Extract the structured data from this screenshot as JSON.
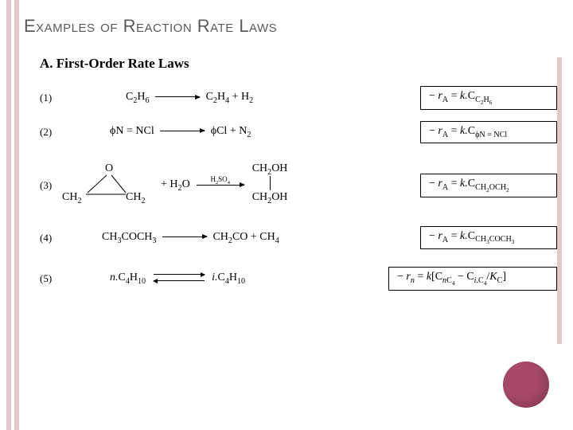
{
  "title": "Examples of Reaction Rate Laws",
  "section": "A. First-Order Rate Laws",
  "rows": [
    {
      "num": "(1)",
      "reactL": "C<sub>2</sub>H<sub>6</sub>",
      "reactR": "C<sub>2</sub>H<sub>4</sub> + H<sub>2</sub>",
      "rate": "− <span class='italic'>r</span><sub>A</sub> = <span class='italic'>k.</span>C<sub>C<sub>2</sub>H<sub>6</sub></sub>"
    },
    {
      "num": "(2)",
      "reactL": "ϕN = NCl",
      "reactR": "ϕCl + N<sub>2</sub>",
      "rate": "− <span class='italic'>r</span><sub>A</sub> = <span class='italic'>k.</span>C<sub>ϕN = NCl</sub>"
    },
    {
      "num": "(3)",
      "catalyst": "H<sub>2</sub>SO<sub>4</sub>",
      "plus": " + H<sub>2</sub>O",
      "prodTop": "CH<sub>2</sub>OH",
      "prodBot": "CH<sub>2</sub>OH",
      "structO": "O",
      "structCH2": "CH<sub>2</sub>",
      "rate": "− <span class='italic'>r</span><sub>A</sub> = <span class='italic'>k.</span>C<sub>CH<sub>2</sub>OCH<sub>2</sub></sub>"
    },
    {
      "num": "(4)",
      "reactL": "CH<sub>3</sub>COCH<sub>3</sub>",
      "reactR": "CH<sub>2</sub>CO + CH<sub>4</sub>",
      "rate": "− <span class='italic'>r</span><sub>A</sub> = <span class='italic'>k.</span>C<sub>CH<sub>3</sub>COCH<sub>3</sub></sub>"
    },
    {
      "num": "(5)",
      "reactL": "<span class='italic'>n.</span>C<sub>4</sub>H<sub>10</sub>",
      "reactR": "<span class='italic'>i.</span>C<sub>4</sub>H<sub>10</sub>",
      "rate": "− <span class='italic'>r<sub>n</sub></span> = <span class='italic'>k</span>[C<sub><span class='italic'>n</span>C<sub>4</sub></sub> − C<sub><span class='italic'>i</span>.C<sub>4</sub></sub>/<span class='italic'>K</span><sub>C</sub>]"
    }
  ],
  "colors": {
    "accent": "#e9c6cc",
    "circle": "#a8496a",
    "titleColor": "#595959"
  }
}
